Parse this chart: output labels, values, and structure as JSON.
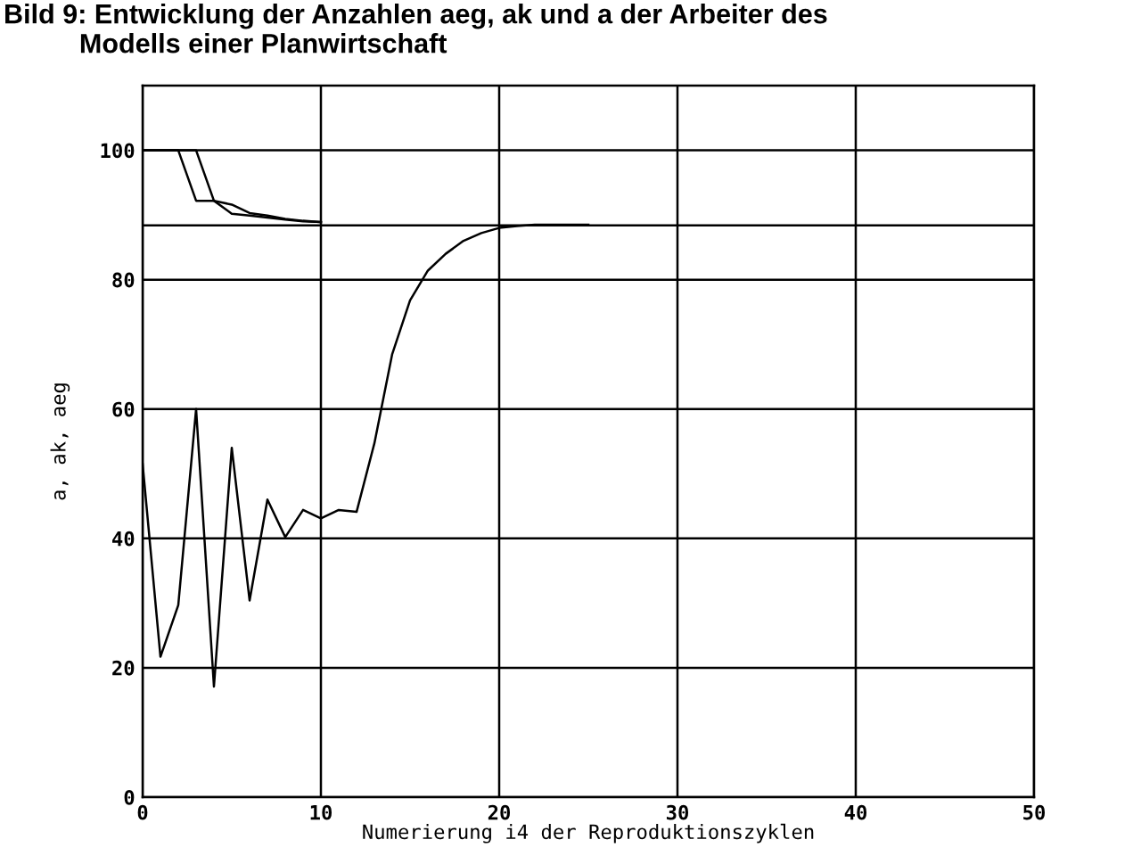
{
  "chart_data": {
    "type": "line",
    "title": "Bild 9: Entwicklung der Anzahlen aeg, ak und a der Arbeiter des\n          Modells einer Planwirtschaft",
    "xlabel": "Numerierung i4 der Reproduktionszyklen",
    "ylabel": "a, ak, aeg",
    "series": [
      {
        "color": "#000000",
        "x": [
          0,
          1,
          2,
          3,
          4,
          5,
          6,
          7,
          8,
          9,
          10
        ],
        "values": [
          100,
          100,
          100,
          92.2,
          92.2,
          91.6,
          90.3,
          89.9,
          89.4,
          89.1,
          88.9
        ]
      },
      {
        "color": "#000000",
        "x": [
          0,
          1,
          2,
          3,
          4,
          5,
          6,
          7,
          8,
          9,
          10
        ],
        "values": [
          100,
          100,
          100,
          100,
          92.2,
          90.2,
          89.9,
          89.6,
          89.3,
          89.0,
          88.9
        ]
      },
      {
        "color": "#000000",
        "x": [
          0,
          1,
          2,
          3,
          4,
          5,
          6,
          7,
          8,
          9,
          10,
          11,
          12,
          13,
          14,
          15,
          16,
          17,
          18,
          19,
          20,
          21,
          22,
          23,
          24,
          25
        ],
        "values": [
          51.5,
          21.7,
          29.7,
          60,
          17.1,
          54,
          30.4,
          46,
          40.2,
          44.4,
          43.1,
          44.4,
          44.1,
          54.7,
          68.5,
          76.8,
          81.4,
          84,
          86,
          87.2,
          88,
          88.3,
          88.5,
          88.5,
          88.5,
          88.5
        ]
      }
    ],
    "xlim": [
      0,
      50
    ],
    "xticks": [
      0,
      10,
      20,
      30,
      40,
      50
    ],
    "ylim": [
      0,
      110
    ],
    "yticks": [
      0,
      20,
      40,
      60,
      80,
      100
    ],
    "ref_lines": [
      {
        "axis": "y",
        "value": 88.4,
        "color": "#000000"
      }
    ],
    "grid": true,
    "marker": "none",
    "line_style": "solid"
  }
}
